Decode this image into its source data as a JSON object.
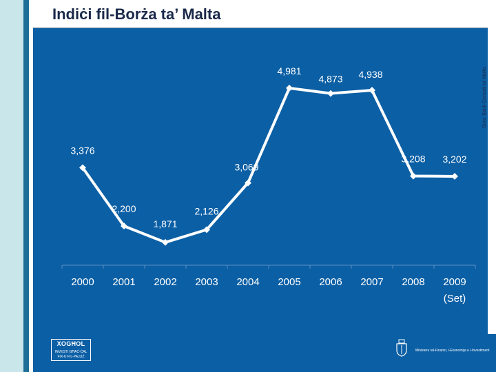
{
  "slide": {
    "title": "Indiċi fil-Borża ta’ Malta",
    "source": "Sors: Bank Ċentrali ta’ Malta"
  },
  "footer": {
    "logo_title": "XOGĦOL",
    "logo_line1": "INVESTI GĦAĊ-ĊAL",
    "logo_line2": "FIX-U FIL-PAJJIŻ",
    "ministry": "Ministeru tal-Finanzi, l-Ekonomija u l-Investiment"
  },
  "colors": {
    "panel": "#0b5fa5",
    "line": "#ffffff",
    "title": "#1b2a4a"
  },
  "chart_data": {
    "type": "line",
    "title": "Indiċi fil-Borża ta’ Malta",
    "categories": [
      "2000",
      "2001",
      "2002",
      "2003",
      "2004",
      "2005",
      "2006",
      "2007",
      "2008",
      "2009"
    ],
    "category_sublabels": [
      "",
      "",
      "",
      "",
      "",
      "",
      "",
      "",
      "",
      "(Set)"
    ],
    "values": [
      3376,
      2200,
      1871,
      2126,
      3069,
      4981,
      4873,
      4938,
      3208,
      3202
    ],
    "labels": [
      "3,376",
      "2,200",
      "1,871",
      "2,126",
      "3,069",
      "4,981",
      "4,873",
      "4,938",
      "3,208",
      "3,202"
    ],
    "ylim": [
      0,
      6000
    ],
    "xlabel": "",
    "ylabel": "",
    "grid": false,
    "legend": "none"
  }
}
